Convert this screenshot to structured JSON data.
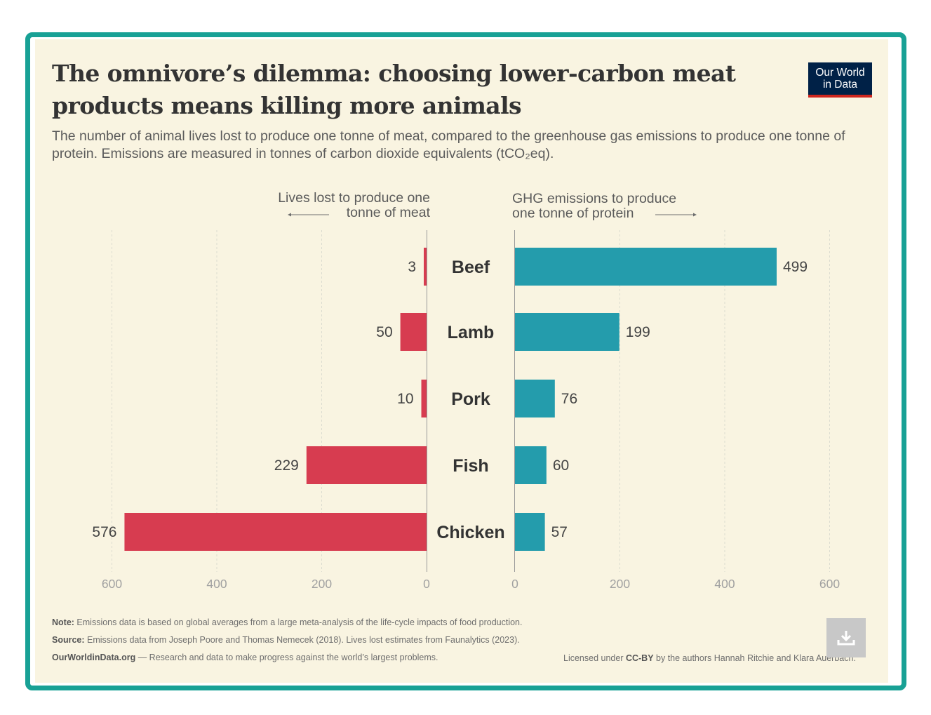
{
  "header": {
    "title": "The omnivore’s dilemma: choosing lower-carbon meat products means killing more animals",
    "subtitle": "The number of animal lives lost to produce one tonne of meat, compared to the greenhouse gas emissions to produce one tonne of protein. Emissions are measured in tonnes of carbon dioxide equivalents (tCO₂eq).",
    "logo_line1": "Our World",
    "logo_line2": "in Data"
  },
  "chart_data": {
    "type": "bar",
    "orientation": "horizontal",
    "layout": "mirrored",
    "categories": [
      "Beef",
      "Lamb",
      "Pork",
      "Fish",
      "Chicken"
    ],
    "series": [
      {
        "name": "Lives lost to produce one tonne of meat",
        "title_line1": "Lives lost to produce one",
        "title_line2": "tonne of meat",
        "values": [
          3,
          50,
          10,
          229,
          576
        ],
        "color": "#d73c50",
        "ticks": [
          600,
          400,
          200,
          0
        ],
        "xlim": [
          0,
          600
        ],
        "direction": "left"
      },
      {
        "name": "GHG emissions to produce one tonne of protein",
        "title_line1": "GHG emissions to produce",
        "title_line2": "one tonne of protein",
        "values": [
          499,
          199,
          76,
          60,
          57
        ],
        "color": "#249cac",
        "ticks": [
          0,
          200,
          400,
          600
        ],
        "xlim": [
          0,
          600
        ],
        "direction": "right"
      }
    ],
    "grid": true
  },
  "footer": {
    "note_label": "Note:",
    "note_text": " Emissions data is based on global averages from a large meta-analysis of the life-cycle impacts of food production.",
    "source_label": "Source:",
    "source_text": " Emissions data from Joseph Poore and Thomas Nemecek (2018). Lives lost estimates from Faunalytics (2023).",
    "site_label": "OurWorldinData.org",
    "site_text": " — Research and data to make progress against the world’s largest problems.",
    "license_prefix": "Licensed under ",
    "license_name": "CC-BY",
    "license_suffix": " by the authors Hannah Ritchie and Klara Auerbach."
  },
  "colors": {
    "frame": "#18a195",
    "background": "#f9f4e1",
    "lives_bar": "#d73c50",
    "ghg_bar": "#249cac"
  },
  "icons": {
    "download": "download-icon"
  }
}
